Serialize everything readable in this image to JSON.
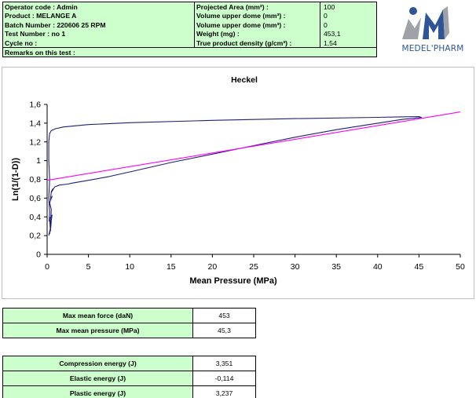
{
  "header": {
    "rows": [
      {
        "left": "Operator code : Admin",
        "mid": "Projected Area (mm²) :",
        "right": "100"
      },
      {
        "left": "Product : MELANGE A",
        "mid": "Volume upper dome (mm³) :",
        "right": "0"
      },
      {
        "left": "Batch Number : 220606 25 RPM",
        "mid": "Volume upper dome (mm³) :",
        "right": "0"
      },
      {
        "left": "Test Number : no 1",
        "mid": "Weight (mg) :",
        "right": "453,1"
      },
      {
        "left": "Cycle no :",
        "mid": "True product density (g/cm³) :",
        "right": "1,54"
      }
    ],
    "remarks": "Remarks on this test :"
  },
  "logo": {
    "text": "MEDEL'PHARM",
    "colors": {
      "blue": "#2f5597",
      "grey": "#9fa3a8"
    }
  },
  "chart_data": {
    "type": "line",
    "title": "Heckel",
    "xlabel": "Mean Pressure (MPa)",
    "ylabel": "Ln(1/(1-D))",
    "xlim": [
      0,
      50
    ],
    "ylim": [
      0,
      1.6
    ],
    "x_ticks": [
      "0",
      "5",
      "10",
      "15",
      "20",
      "25",
      "30",
      "35",
      "40",
      "45",
      "50"
    ],
    "y_ticks": [
      "0",
      "0,2",
      "0,4",
      "0,6",
      "0,8",
      "1",
      "1,2",
      "1,4",
      "1,6"
    ],
    "grid": false,
    "legend": "none",
    "series": [
      {
        "color": "#1f1f7a",
        "x": [
          0.2,
          0.4,
          0.3,
          0.5,
          0.4,
          0.3,
          0.6,
          0.4,
          0.5,
          0.3,
          0.6,
          0.4,
          0.5,
          0.7,
          0.5,
          0.9,
          1.5,
          2.5,
          3.0,
          5.0,
          7.5,
          10.0,
          15.0,
          20.0,
          25.0,
          30.0,
          35.0,
          40.0,
          43.0,
          45.3,
          45.0,
          40.0,
          30.0,
          20.0,
          10.0,
          5.0,
          2.0,
          1.0,
          0.5,
          0.3,
          0.2,
          0.2,
          0.3,
          0.2,
          0.3,
          0.25
        ],
        "y": [
          0.2,
          0.28,
          0.22,
          0.35,
          0.25,
          0.38,
          0.42,
          0.3,
          0.48,
          0.55,
          0.62,
          0.58,
          0.67,
          0.7,
          0.66,
          0.72,
          0.74,
          0.75,
          0.76,
          0.79,
          0.83,
          0.88,
          0.98,
          1.07,
          1.16,
          1.25,
          1.33,
          1.4,
          1.44,
          1.46,
          1.47,
          1.462,
          1.448,
          1.43,
          1.405,
          1.385,
          1.36,
          1.34,
          1.32,
          1.29,
          1.2,
          1.0,
          0.8,
          0.6,
          0.45,
          0.35
        ]
      },
      {
        "color": "#ff00ff",
        "x": [
          0,
          50
        ],
        "y": [
          0.79,
          1.52
        ]
      }
    ]
  },
  "results_1": [
    {
      "label": "Max mean force (daN)",
      "value": "453"
    },
    {
      "label": "Max mean pressure (MPa)",
      "value": "45,3"
    }
  ],
  "results_2": [
    {
      "label": "Compression energy (J)",
      "value": "3,351"
    },
    {
      "label": "Elastic energy (J)",
      "value": "-0,114"
    },
    {
      "label": "Plastic energy (J)",
      "value": "3,237"
    }
  ]
}
